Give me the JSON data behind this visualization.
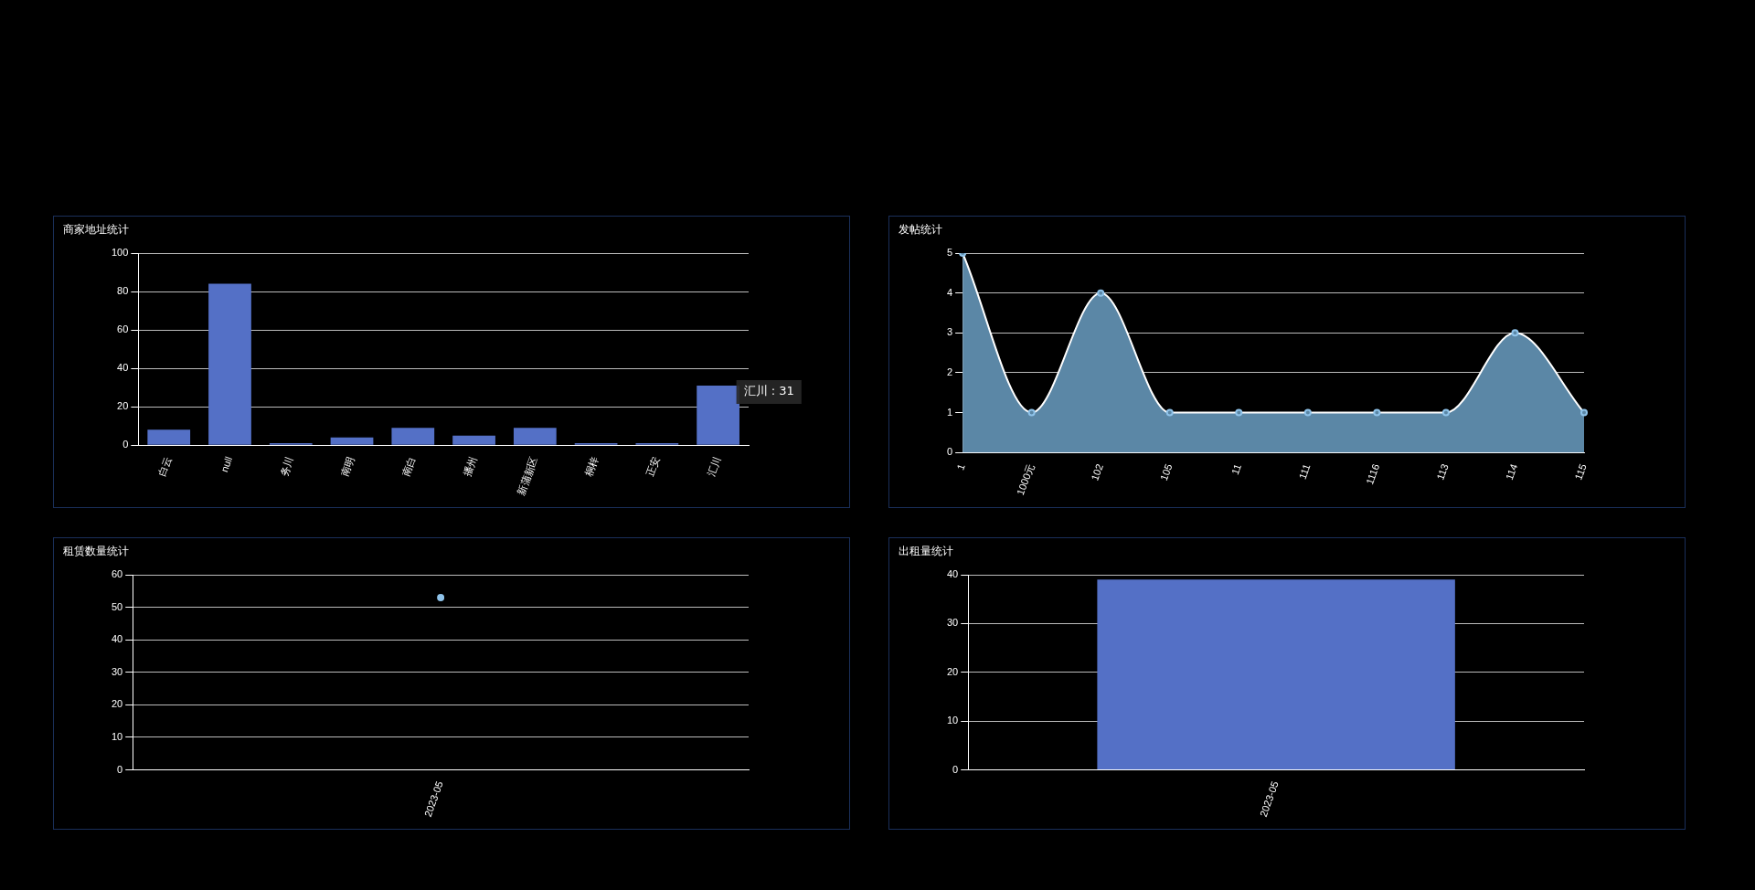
{
  "chart_data": [
    {
      "type": "bar",
      "title": "商家地址统计",
      "categories": [
        "白云",
        "null",
        "务川",
        "南明",
        "南白",
        "播州",
        "新蒲新区",
        "桐梓",
        "正安",
        "汇川"
      ],
      "series": [
        {
          "color": "#5470c6",
          "values": [
            8,
            84,
            1,
            4,
            9,
            5,
            9,
            1,
            1,
            31
          ]
        }
      ],
      "ylim": [
        0,
        100
      ],
      "yticks": [
        0,
        20,
        40,
        60,
        80,
        100
      ],
      "grid": "y",
      "legend": false,
      "annotations": [
        {
          "text": "汇川 : 31",
          "x": "汇川",
          "y": 31
        }
      ]
    },
    {
      "type": "area",
      "title": "发帖统计",
      "categories": [
        "1",
        "1000元",
        "102",
        "105",
        "11",
        "111",
        "1116",
        "113",
        "114",
        "115"
      ],
      "series": [
        {
          "color": "#5b87a6",
          "values": [
            5,
            1,
            4,
            1,
            1,
            1,
            1,
            1,
            3,
            1
          ]
        }
      ],
      "ylim": [
        0,
        5
      ],
      "yticks": [
        0,
        1,
        2,
        3,
        4,
        5
      ],
      "grid": "y",
      "legend": false,
      "marker": "circle"
    },
    {
      "type": "line",
      "title": "租赁数量统计",
      "categories": [
        "2023-05"
      ],
      "series": [
        {
          "color": "#8fc3ea",
          "values": [
            53
          ]
        }
      ],
      "ylim": [
        0,
        60
      ],
      "yticks": [
        0,
        10,
        20,
        30,
        40,
        50,
        60
      ],
      "grid": "y",
      "legend": false,
      "marker": "circle"
    },
    {
      "type": "bar",
      "title": "出租量统计",
      "categories": [
        "2023-05"
      ],
      "series": [
        {
          "color": "#5470c6",
          "values": [
            39
          ]
        }
      ],
      "ylim": [
        0,
        40
      ],
      "yticks": [
        0,
        10,
        20,
        30,
        40
      ],
      "grid": "y",
      "legend": false
    }
  ]
}
